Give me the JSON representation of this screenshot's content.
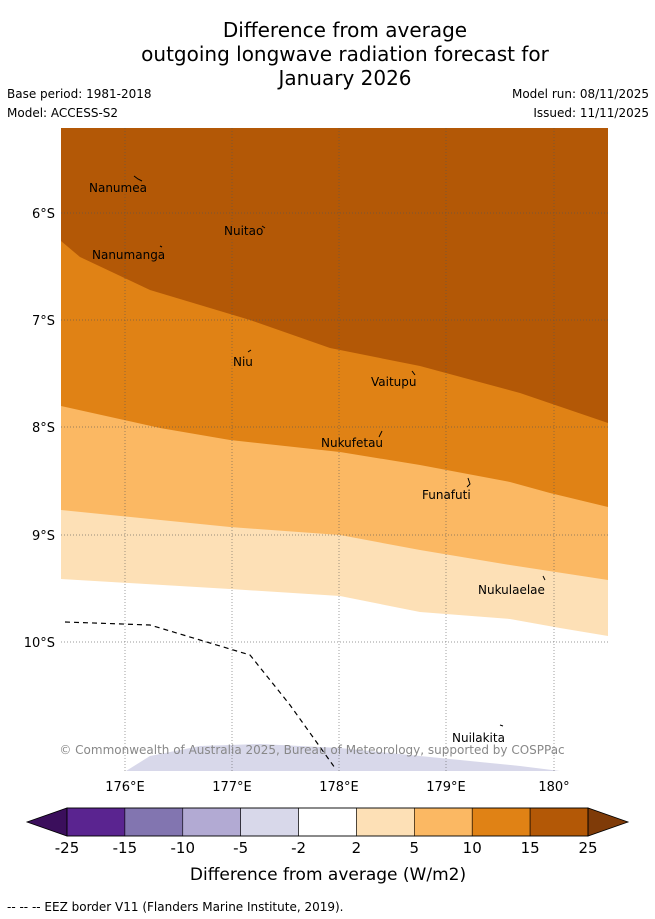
{
  "title": {
    "line1": "Difference from average",
    "line2": "outgoing longwave radiation forecast for",
    "line3": "January 2026"
  },
  "meta": {
    "base_period": "Base period: 1981-2018",
    "model": "Model: ACCESS-S2",
    "model_run": "Model run: 08/11/2025",
    "issued": "Issued: 11/11/2025"
  },
  "map": {
    "lat_labels": [
      "6°S",
      "7°S",
      "8°S",
      "9°S",
      "10°S"
    ],
    "lon_labels": [
      "176°E",
      "177°E",
      "178°E",
      "179°E",
      "180°"
    ],
    "places": [
      {
        "name": "Nanumea"
      },
      {
        "name": "Nuitao"
      },
      {
        "name": "Nanumanga"
      },
      {
        "name": "Niu"
      },
      {
        "name": "Vaitupu"
      },
      {
        "name": "Nukufetau"
      },
      {
        "name": "Funafuti"
      },
      {
        "name": "Nukulaelae"
      },
      {
        "name": "Nuilakita"
      }
    ],
    "copyright": "© Commonwealth of Australia 2025, Bureau of Meteorology, supported by COSPPac"
  },
  "colorbar": {
    "label": "Difference from average (W/m2)",
    "ticks": [
      "-25",
      "-15",
      "-10",
      "-5",
      "-2",
      "2",
      "5",
      "10",
      "15",
      "25"
    ],
    "colors": [
      "#3b0f5c",
      "#5a2490",
      "#8275b0",
      "#b2aad3",
      "#d8d8ea",
      "#ffffff",
      "#fde0b6",
      "#fbb863",
      "#e08215",
      "#b35806",
      "#7f3b08"
    ]
  },
  "footer": {
    "eez_note": "-- -- -- EEZ border V11 (Flanders Marine Institute, 2019)."
  }
}
